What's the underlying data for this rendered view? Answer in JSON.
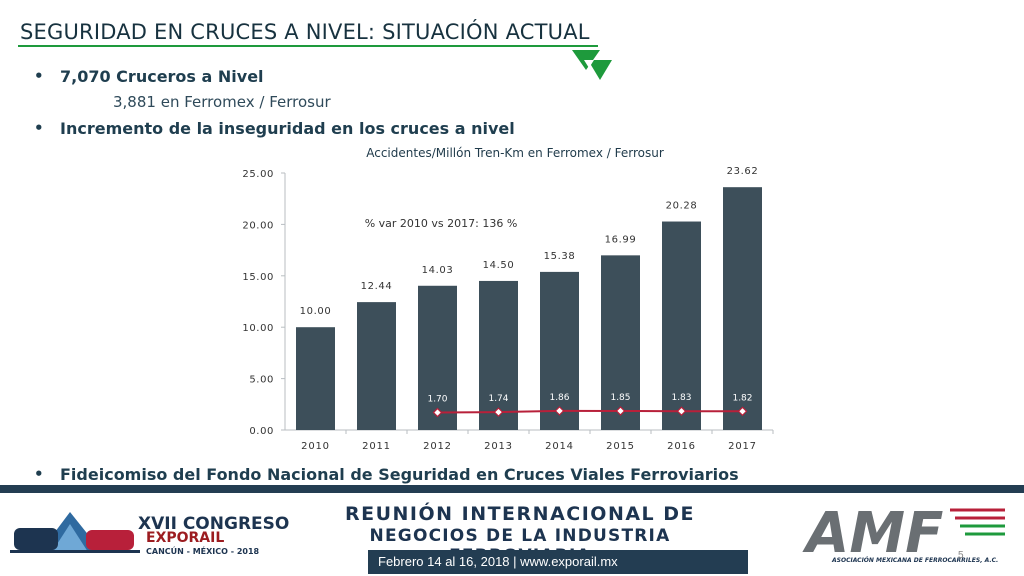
{
  "title": "SEGURIDAD EN CRUCES A NIVEL: SITUACIÓN ACTUAL",
  "bullets": {
    "first": "7,070 Cruceros a Nivel",
    "first_sub": "3,881 en Ferromex / Ferrosur",
    "second": "Incremento de la inseguridad en los cruces a nivel",
    "third": "Fideicomiso del Fondo Nacional de Seguridad en Cruces Viales Ferroviarios"
  },
  "chart_data": {
    "type": "bar",
    "title": "Accidentes/Millón Tren-Km en Ferromex / Ferrosur",
    "categories": [
      "2010",
      "2011",
      "2012",
      "2013",
      "2014",
      "2015",
      "2016",
      "2017"
    ],
    "series": [
      {
        "values": [
          10.0,
          12.44,
          14.03,
          14.5,
          15.38,
          16.99,
          20.28,
          23.62
        ],
        "labels": [
          "10.00",
          "12.44",
          "14.03",
          "14.50",
          "15.38",
          "16.99",
          "20.28",
          "23.62"
        ],
        "color": "#3d4f5a"
      },
      {
        "type": "line",
        "x": [
          "2012",
          "2013",
          "2014",
          "2015",
          "2016",
          "2017"
        ],
        "values": [
          1.7,
          1.74,
          1.86,
          1.85,
          1.83,
          1.82
        ],
        "labels": [
          "1.70",
          "1.74",
          "1.86",
          "1.85",
          "1.83",
          "1.82"
        ],
        "color": "#b8203a"
      }
    ],
    "ylim": [
      0,
      25
    ],
    "yticks": [
      "0.00",
      "5.00",
      "10.00",
      "15.00",
      "20.00",
      "25.00"
    ],
    "annotation": "% var 2010 vs 2017: 136 %",
    "grid": false
  },
  "footer": {
    "event_line1": "XVII CONGRESO",
    "event_line2": "EXPORAIL",
    "event_line3": "CANCÚN - MÉXICO - 2018",
    "meeting_line1": "REUNIÓN INTERNACIONAL DE",
    "meeting_line2": "NEGOCIOS DE LA INDUSTRIA FERROVIARIA",
    "dates": "Febrero 14 al 16, 2018 | www.exporail.mx",
    "org_name": "ASOCIACIÓN MEXICANA DE FERROCARRILES, A.C.",
    "org_logo": "AMF",
    "page_number": "5"
  },
  "colors": {
    "bar": "#3d4f5a",
    "line": "#b8203a",
    "accent_green": "#1e9a3c",
    "navy": "#233d52"
  }
}
